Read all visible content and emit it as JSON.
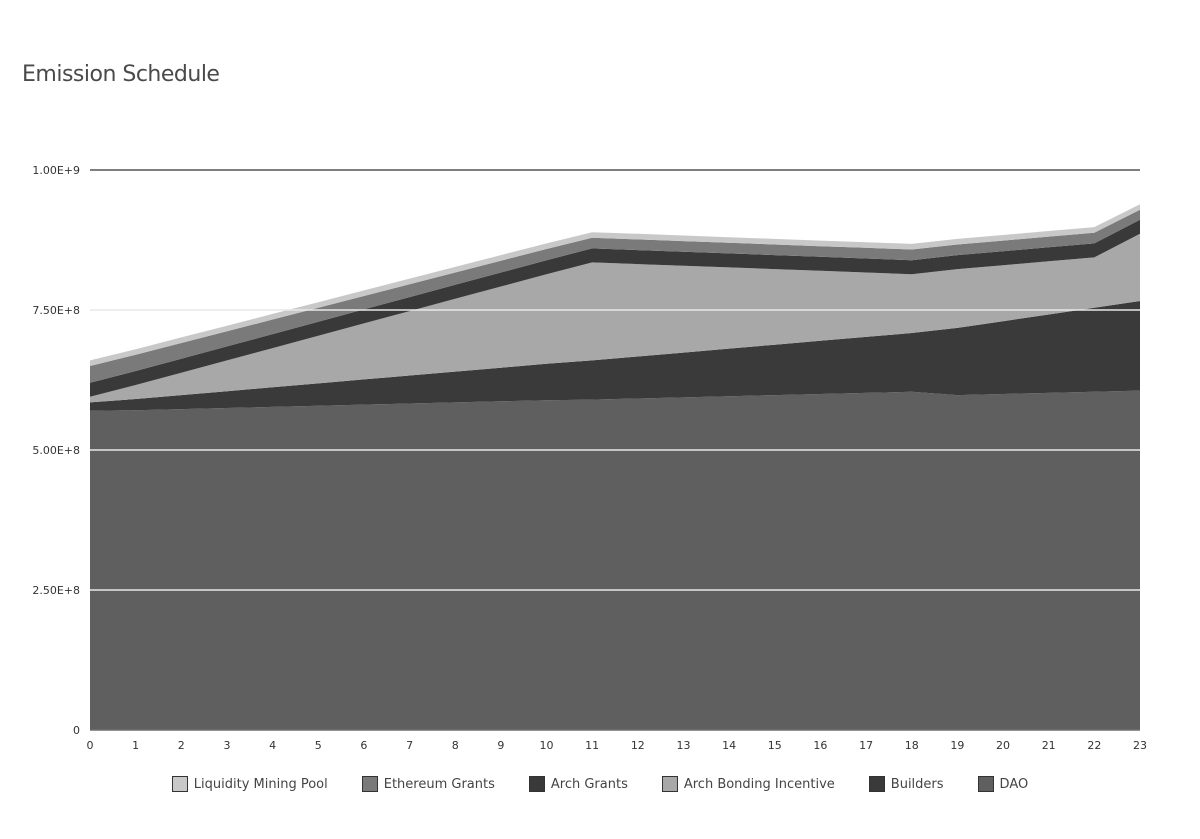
{
  "chart_data": {
    "type": "area",
    "title": "Emission Schedule",
    "stacked": true,
    "x": [
      0,
      1,
      2,
      3,
      4,
      5,
      6,
      7,
      8,
      9,
      10,
      11,
      12,
      13,
      14,
      15,
      16,
      17,
      18,
      19,
      20,
      21,
      22,
      23
    ],
    "ylim": [
      0,
      1000000000
    ],
    "yticks": [
      {
        "value": 0,
        "label": "0"
      },
      {
        "value": 250000000,
        "label": "2.50E+8"
      },
      {
        "value": 500000000,
        "label": "5.00E+8"
      },
      {
        "value": 750000000,
        "label": "7.50E+8"
      },
      {
        "value": 1000000000,
        "label": "1.00E+9"
      }
    ],
    "grid": true,
    "legend_position": "bottom",
    "series": [
      {
        "name": "DAO",
        "color": "#5f5f5f",
        "values": [
          570000000,
          571000000,
          573000000,
          575000000,
          577000000,
          579000000,
          581000000,
          583000000,
          585000000,
          587000000,
          589000000,
          590000000,
          592000000,
          594000000,
          596000000,
          598000000,
          600000000,
          602000000,
          604000000,
          598000000,
          600000000,
          602000000,
          604000000,
          606000000
        ]
      },
      {
        "name": "Builders",
        "color": "#3a3a3a",
        "values": [
          15000000,
          20000000,
          25000000,
          30000000,
          35000000,
          40000000,
          45000000,
          50000000,
          55000000,
          60000000,
          65000000,
          70000000,
          75000000,
          80000000,
          85000000,
          90000000,
          95000000,
          100000000,
          105000000,
          120000000,
          130000000,
          140000000,
          150000000,
          160000000
        ]
      },
      {
        "name": "Arch Bonding Incentive",
        "color": "#a8a8a8",
        "values": [
          10000000,
          25000000,
          40000000,
          55000000,
          70000000,
          85000000,
          100000000,
          115000000,
          130000000,
          145000000,
          160000000,
          175000000,
          165000000,
          155000000,
          145000000,
          135000000,
          125000000,
          115000000,
          105000000,
          105000000,
          100000000,
          95000000,
          90000000,
          120000000
        ]
      },
      {
        "name": "Arch Grants",
        "color": "#393939",
        "values": [
          25000000,
          25000000,
          25000000,
          25000000,
          25000000,
          25000000,
          25000000,
          25000000,
          25000000,
          25000000,
          25000000,
          25000000,
          25000000,
          25000000,
          25000000,
          25000000,
          25000000,
          25000000,
          25000000,
          25000000,
          25000000,
          25000000,
          25000000,
          25000000
        ]
      },
      {
        "name": "Ethereum Grants",
        "color": "#7a7a7a",
        "values": [
          30000000,
          29000000,
          28000000,
          27000000,
          26000000,
          25000000,
          24000000,
          23000000,
          22000000,
          21000000,
          20000000,
          19000000,
          19000000,
          19000000,
          19000000,
          19000000,
          19000000,
          19000000,
          19000000,
          19000000,
          19000000,
          19000000,
          19000000,
          18000000
        ]
      },
      {
        "name": "Liquidity Mining Pool",
        "color": "#c8c8c8",
        "values": [
          10000000,
          10000000,
          10000000,
          10000000,
          10000000,
          10000000,
          10000000,
          10000000,
          10000000,
          10000000,
          10000000,
          10000000,
          10000000,
          10000000,
          10000000,
          10000000,
          10000000,
          10000000,
          10000000,
          10000000,
          10000000,
          10000000,
          10000000,
          10000000
        ]
      }
    ],
    "legend_order": [
      "Liquidity Mining Pool",
      "Ethereum Grants",
      "Arch Grants",
      "Arch Bonding Incentive",
      "Builders",
      "DAO"
    ]
  }
}
